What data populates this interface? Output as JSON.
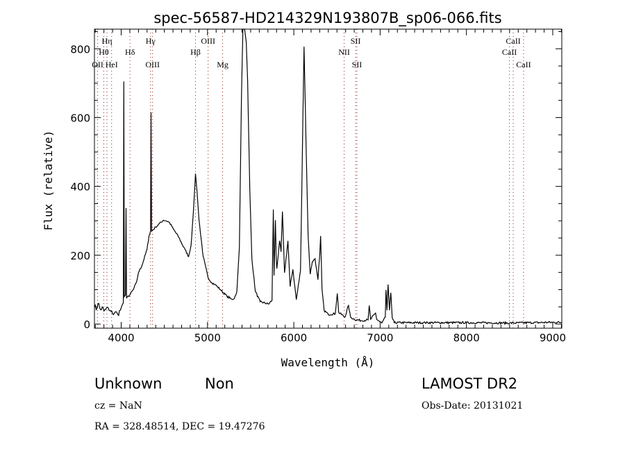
{
  "chart_data": {
    "type": "line",
    "title": "spec-56587-HD214329N193807B_sp06-066.fits",
    "xlabel": "Wavelength (Å)",
    "ylabel": "Flux (relative)",
    "xlim": [
      3690,
      9105
    ],
    "ylim": [
      -12,
      857
    ],
    "xticks": [
      4000,
      5000,
      6000,
      7000,
      8000,
      9000
    ],
    "yticks": [
      0,
      200,
      400,
      600,
      800
    ],
    "xtick_labels": [
      "4000",
      "5000",
      "6000",
      "7000",
      "8000",
      "9000"
    ],
    "ytick_labels": [
      "0",
      "200",
      "400",
      "600",
      "800"
    ],
    "grid": false,
    "line_color": "#000000",
    "marker_line_color": "#8b1a1a",
    "spectral_lines": [
      {
        "name": "OII",
        "wavelength": 3727
      },
      {
        "name": "Hθ",
        "wavelength": 3798
      },
      {
        "name": "Hη",
        "wavelength": 3835
      },
      {
        "name": "HeI",
        "wavelength": 3889
      },
      {
        "name": "Hδ",
        "wavelength": 4102
      },
      {
        "name": "Hγ",
        "wavelength": 4340
      },
      {
        "name": "OIII",
        "wavelength": 4363
      },
      {
        "name": "Hβ",
        "wavelength": 4861
      },
      {
        "name": "OIII",
        "wavelength": 5007
      },
      {
        "name": "Mg",
        "wavelength": 5175
      },
      {
        "name": "NII",
        "wavelength": 6583
      },
      {
        "name": "SII",
        "wavelength": 6716
      },
      {
        "name": "SII",
        "wavelength": 6731
      },
      {
        "name": "CaII",
        "wavelength": 8498
      },
      {
        "name": "CaII",
        "wavelength": 8542
      },
      {
        "name": "CaII",
        "wavelength": 8662
      }
    ],
    "series": [
      {
        "name": "flux",
        "points": [
          [
            3690,
            50
          ],
          [
            3700,
            55
          ],
          [
            3720,
            45
          ],
          [
            3740,
            60
          ],
          [
            3760,
            42
          ],
          [
            3780,
            50
          ],
          [
            3800,
            38
          ],
          [
            3830,
            48
          ],
          [
            3860,
            40
          ],
          [
            3900,
            30
          ],
          [
            3930,
            35
          ],
          [
            3960,
            28
          ],
          [
            3990,
            40
          ],
          [
            4010,
            55
          ],
          [
            4025,
            62
          ],
          [
            4030,
            705
          ],
          [
            4036,
            80
          ],
          [
            4050,
            85
          ],
          [
            4056,
            337
          ],
          [
            4062,
            75
          ],
          [
            4100,
            85
          ],
          [
            4140,
            100
          ],
          [
            4177,
            121
          ],
          [
            4200,
            150
          ],
          [
            4240,
            170
          ],
          [
            4298,
            216
          ],
          [
            4322,
            256
          ],
          [
            4340,
            270
          ],
          [
            4346,
            615
          ],
          [
            4352,
            270
          ],
          [
            4400,
            282
          ],
          [
            4443,
            292
          ],
          [
            4490,
            302
          ],
          [
            4523,
            300
          ],
          [
            4560,
            295
          ],
          [
            4604,
            276
          ],
          [
            4668,
            252
          ],
          [
            4700,
            235
          ],
          [
            4741,
            216
          ],
          [
            4781,
            196
          ],
          [
            4810,
            230
          ],
          [
            4835,
            320
          ],
          [
            4861,
            437
          ],
          [
            4880,
            380
          ],
          [
            4902,
            302
          ],
          [
            4950,
            196
          ],
          [
            5006,
            135
          ],
          [
            5050,
            120
          ],
          [
            5087,
            115
          ],
          [
            5150,
            100
          ],
          [
            5224,
            81
          ],
          [
            5280,
            72
          ],
          [
            5312,
            75
          ],
          [
            5340,
            95
          ],
          [
            5369,
            222
          ],
          [
            5393,
            659
          ],
          [
            5410,
            857
          ],
          [
            5430,
            857
          ],
          [
            5449,
            820
          ],
          [
            5465,
            705
          ],
          [
            5490,
            391
          ],
          [
            5514,
            190
          ],
          [
            5554,
            95
          ],
          [
            5610,
            65
          ],
          [
            5707,
            58
          ],
          [
            5747,
            69
          ],
          [
            5763,
            333
          ],
          [
            5771,
            141
          ],
          [
            5787,
            302
          ],
          [
            5795,
            200
          ],
          [
            5803,
            161
          ],
          [
            5836,
            242
          ],
          [
            5852,
            210
          ],
          [
            5868,
            327
          ],
          [
            5892,
            149
          ],
          [
            5932,
            242
          ],
          [
            5957,
            109
          ],
          [
            5989,
            159
          ],
          [
            6029,
            71
          ],
          [
            6077,
            155
          ],
          [
            6101,
            524
          ],
          [
            6118,
            806
          ],
          [
            6142,
            524
          ],
          [
            6166,
            256
          ],
          [
            6190,
            145
          ],
          [
            6214,
            181
          ],
          [
            6246,
            190
          ],
          [
            6279,
            129
          ],
          [
            6300,
            200
          ],
          [
            6311,
            256
          ],
          [
            6327,
            101
          ],
          [
            6351,
            40
          ],
          [
            6399,
            28
          ],
          [
            6480,
            30
          ],
          [
            6504,
            89
          ],
          [
            6520,
            34
          ],
          [
            6592,
            20
          ],
          [
            6633,
            54
          ],
          [
            6657,
            20
          ],
          [
            6700,
            14
          ],
          [
            6778,
            10
          ],
          [
            6860,
            12
          ],
          [
            6874,
            54
          ],
          [
            6890,
            14
          ],
          [
            6947,
            32
          ],
          [
            6960,
            14
          ],
          [
            7019,
            3
          ],
          [
            7060,
            20
          ],
          [
            7068,
            99
          ],
          [
            7080,
            40
          ],
          [
            7092,
            115
          ],
          [
            7108,
            40
          ],
          [
            7124,
            91
          ],
          [
            7140,
            18
          ],
          [
            7164,
            4
          ],
          [
            7500,
            4
          ],
          [
            8000,
            4
          ],
          [
            8500,
            3
          ],
          [
            9000,
            5
          ],
          [
            9105,
            5
          ]
        ]
      }
    ]
  },
  "info": {
    "object_class": "Unknown",
    "subclass": "Non",
    "survey": "LAMOST DR2",
    "redshift": "cz = NaN",
    "obs_date": "Obs-Date: 20131021",
    "coords": "RA = 328.48514, DEC =  19.47276"
  }
}
